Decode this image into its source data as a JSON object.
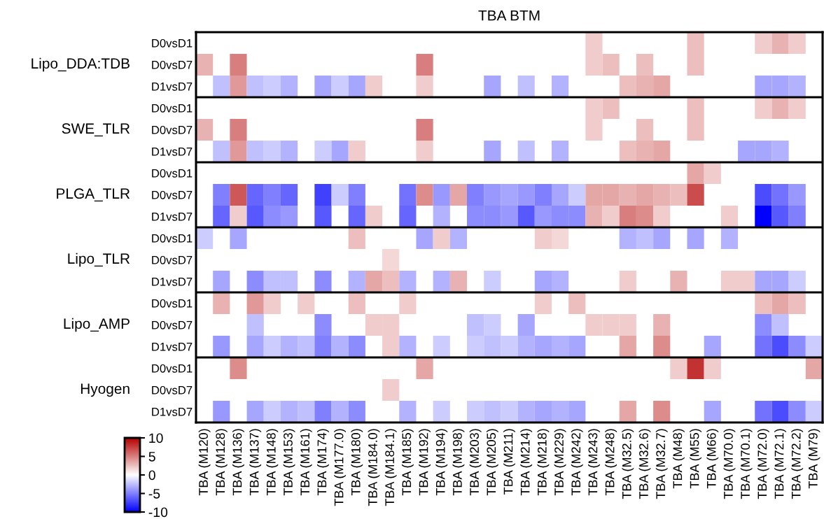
{
  "chart_data": {
    "type": "heatmap",
    "title": "TBA BTM",
    "clim": [
      -10,
      10
    ],
    "cticks": [
      -10,
      -5,
      0,
      5,
      10
    ],
    "categories": [
      "TBA (M120)",
      "TBA (M128)",
      "TBA (M136)",
      "TBA (M137)",
      "TBA (M148)",
      "TBA (M153)",
      "TBA (M161)",
      "TBA (M174)",
      "TBA (M177.0)",
      "TBA (M180)",
      "TBA (M184.0)",
      "TBA (M184.1)",
      "TBA (M185)",
      "TBA (M192)",
      "TBA (M194)",
      "TBA (M198)",
      "TBA (M203)",
      "TBA (M205)",
      "TBA (M211)",
      "TBA (M214)",
      "TBA (M218)",
      "TBA (M229)",
      "TBA (M242)",
      "TBA (M243)",
      "TBA (M248)",
      "TBA (M32.5)",
      "TBA (M32.6)",
      "TBA (M32.7)",
      "TBA (M48)",
      "TBA (M55)",
      "TBA (M66)",
      "TBA (M70.0)",
      "TBA (M70.1)",
      "TBA (M72.0)",
      "TBA (M72.1)",
      "TBA (M72.2)",
      "TBA (M79)"
    ],
    "y_categories": [
      "D0vsD1",
      "D0vsD7",
      "D1vsD7",
      "D0vsD1",
      "D0vsD7",
      "D1vsD7",
      "D0vsD1",
      "D0vsD7",
      "D1vsD7",
      "D0vsD1",
      "D0vsD7",
      "D1vsD7",
      "D0vsD1",
      "D0vsD7",
      "D1vsD7",
      "D0vsD1",
      "D0vsD7",
      "D1vsD7"
    ],
    "y2_categories": [
      null,
      "Lipo_DDA:TDB",
      null,
      null,
      "SWE_TLR",
      null,
      null,
      "PLGA_TLR",
      null,
      null,
      "Lipo_TLR",
      null,
      null,
      "Lipo_AMP",
      null,
      null,
      "Hyogen",
      null
    ],
    "cells": [
      [
        null,
        null,
        null,
        null,
        null,
        null,
        null,
        null,
        null,
        null,
        null,
        null,
        null,
        null,
        null,
        null,
        null,
        null,
        null,
        null,
        null,
        null,
        null,
        2,
        null,
        null,
        null,
        null,
        null,
        2.5,
        null,
        null,
        null,
        2,
        3,
        2,
        null
      ],
      [
        3,
        null,
        5,
        null,
        null,
        null,
        null,
        null,
        null,
        null,
        null,
        null,
        null,
        5,
        null,
        null,
        null,
        null,
        null,
        null,
        null,
        null,
        null,
        2,
        2.5,
        null,
        2.5,
        null,
        null,
        2.5,
        null,
        null,
        null,
        null,
        null,
        null,
        null
      ],
      [
        null,
        -2.5,
        4,
        -2.5,
        -2,
        -3,
        null,
        -3.5,
        -2,
        -3.5,
        2,
        null,
        null,
        2,
        null,
        null,
        null,
        -3.5,
        null,
        -2.5,
        null,
        -3,
        null,
        null,
        null,
        2.5,
        3,
        3.5,
        null,
        null,
        null,
        null,
        null,
        -3.5,
        -3.5,
        -3,
        null
      ],
      [
        null,
        null,
        null,
        null,
        null,
        null,
        null,
        null,
        null,
        null,
        null,
        null,
        null,
        null,
        null,
        null,
        null,
        null,
        null,
        null,
        null,
        null,
        null,
        2,
        2.5,
        null,
        null,
        null,
        null,
        2.5,
        null,
        null,
        null,
        2,
        3,
        2,
        null
      ],
      [
        3,
        null,
        5,
        null,
        null,
        null,
        null,
        null,
        null,
        null,
        null,
        null,
        null,
        5,
        null,
        null,
        null,
        null,
        null,
        null,
        null,
        null,
        null,
        2,
        null,
        null,
        2.5,
        null,
        null,
        2.5,
        null,
        null,
        null,
        null,
        null,
        null,
        null
      ],
      [
        null,
        -2.5,
        4,
        -2.5,
        -2,
        -3,
        null,
        -2,
        -3.5,
        2,
        null,
        null,
        null,
        2,
        null,
        null,
        null,
        -3.5,
        null,
        -2.5,
        null,
        -3,
        null,
        null,
        null,
        2.5,
        3,
        3.5,
        null,
        null,
        null,
        null,
        -3.5,
        -3.5,
        -3,
        null,
        null
      ],
      [
        null,
        null,
        null,
        null,
        null,
        null,
        null,
        null,
        null,
        null,
        null,
        null,
        null,
        null,
        null,
        null,
        null,
        null,
        null,
        null,
        null,
        null,
        null,
        null,
        null,
        null,
        null,
        null,
        null,
        3.5,
        2,
        null,
        null,
        null,
        null,
        null,
        null
      ],
      [
        null,
        -5,
        6.5,
        -6,
        -5,
        -6,
        null,
        -7.5,
        -2,
        -5,
        null,
        null,
        -5.5,
        4.5,
        -4,
        3.5,
        -5,
        -4,
        -3.5,
        -4,
        -5,
        -3.5,
        -2,
        3.5,
        3.5,
        3,
        3.5,
        3,
        2.5,
        7,
        null,
        null,
        null,
        -7,
        -5.5,
        -4,
        null
      ],
      [
        null,
        -6,
        2,
        -6.5,
        -4.5,
        -4,
        null,
        -6.5,
        null,
        -6,
        2,
        null,
        -6,
        null,
        -3,
        null,
        -4.5,
        -4.5,
        -4,
        -6.5,
        -4,
        -4.5,
        -4.5,
        3,
        2,
        5,
        4.5,
        2,
        null,
        null,
        null,
        2,
        null,
        -10,
        -6.5,
        -5,
        null
      ],
      [
        -2,
        null,
        -3.5,
        null,
        null,
        null,
        null,
        null,
        null,
        2.5,
        null,
        null,
        null,
        -3.5,
        2,
        -3,
        null,
        null,
        null,
        null,
        2,
        1.5,
        null,
        null,
        null,
        -3,
        -2.5,
        -3.5,
        null,
        -3.5,
        null,
        -3,
        null,
        null,
        null,
        null,
        null
      ],
      [
        null,
        null,
        null,
        null,
        null,
        null,
        null,
        null,
        null,
        null,
        null,
        1.5,
        null,
        null,
        null,
        null,
        null,
        null,
        null,
        null,
        null,
        null,
        null,
        null,
        null,
        null,
        null,
        null,
        null,
        null,
        null,
        null,
        null,
        null,
        null,
        null,
        null
      ],
      [
        null,
        -3.5,
        null,
        -4.5,
        -2.5,
        -2.5,
        null,
        -4.5,
        null,
        -3,
        3.5,
        2.5,
        -3,
        null,
        -3,
        3,
        null,
        -2,
        null,
        null,
        -3.5,
        -3,
        null,
        null,
        null,
        2,
        null,
        null,
        3,
        null,
        null,
        2,
        2,
        -3.5,
        -3.5,
        -2,
        null
      ],
      [
        null,
        3,
        null,
        4,
        2,
        null,
        2,
        null,
        null,
        2.5,
        null,
        null,
        2,
        null,
        null,
        null,
        null,
        null,
        null,
        null,
        2,
        null,
        2.5,
        null,
        null,
        null,
        null,
        null,
        null,
        null,
        null,
        null,
        null,
        2.5,
        3.5,
        2.5,
        null
      ],
      [
        null,
        null,
        null,
        -2.5,
        null,
        null,
        null,
        -4.5,
        null,
        null,
        2,
        2,
        null,
        null,
        null,
        null,
        -2.5,
        -2,
        null,
        -3.5,
        null,
        null,
        null,
        2,
        2,
        2,
        null,
        3,
        null,
        null,
        null,
        null,
        null,
        -4.5,
        -2.5,
        null,
        null
      ],
      [
        null,
        -4,
        null,
        -3.5,
        -2,
        -3,
        -2.5,
        -5,
        -3,
        -4.5,
        null,
        2,
        -3,
        null,
        -2,
        null,
        -2,
        -2.5,
        -2,
        -3,
        -3.5,
        -3,
        -3.5,
        null,
        null,
        3.5,
        null,
        4.5,
        null,
        null,
        -3.5,
        null,
        null,
        -5.5,
        -7,
        -4.5,
        -2
      ],
      [
        null,
        null,
        4.5,
        null,
        null,
        null,
        null,
        null,
        null,
        null,
        null,
        null,
        null,
        3.5,
        null,
        null,
        null,
        null,
        null,
        null,
        null,
        null,
        null,
        null,
        null,
        null,
        null,
        null,
        2,
        8,
        2,
        null,
        null,
        null,
        null,
        null,
        3.5
      ],
      [
        null,
        null,
        null,
        null,
        null,
        null,
        null,
        null,
        null,
        null,
        null,
        2,
        null,
        null,
        null,
        null,
        null,
        null,
        null,
        null,
        null,
        null,
        null,
        null,
        null,
        null,
        null,
        null,
        null,
        null,
        null,
        null,
        null,
        null,
        null,
        null,
        null
      ],
      [
        null,
        -4,
        null,
        -3.5,
        -2,
        -3,
        -2.5,
        -5,
        -3,
        -4.5,
        null,
        null,
        -3,
        null,
        -2,
        null,
        -2,
        -2.5,
        -2,
        -3,
        -3.5,
        -3,
        -3.5,
        null,
        null,
        3.5,
        null,
        4.5,
        null,
        null,
        -3.5,
        null,
        null,
        -5.5,
        -7,
        -4.5,
        -2
      ]
    ]
  }
}
